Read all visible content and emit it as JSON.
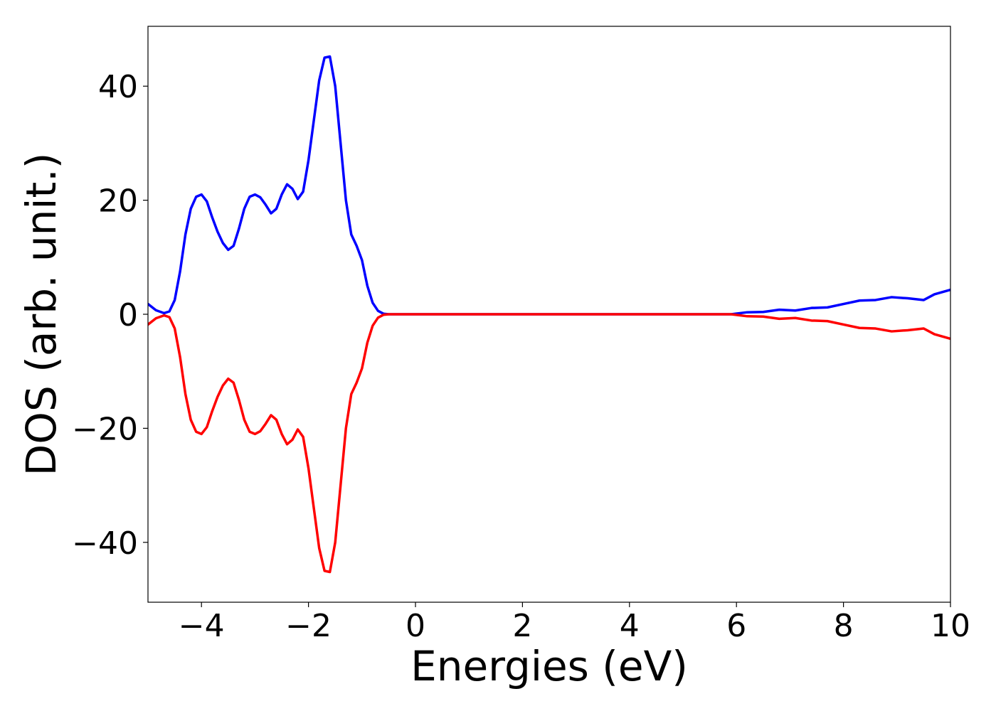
{
  "chart_data": {
    "type": "line",
    "xlabel": "Energies (eV)",
    "ylabel": "DOS (arb. unit.)",
    "xlim": [
      -5,
      10
    ],
    "ylim": [
      -50.5,
      50.5
    ],
    "xticks": [
      -4,
      -2,
      0,
      2,
      4,
      6,
      8,
      10
    ],
    "xtick_labels": [
      "−4",
      "−2",
      "0",
      "2",
      "4",
      "6",
      "8",
      "10"
    ],
    "yticks": [
      -40,
      -20,
      0,
      20,
      40
    ],
    "ytick_labels": [
      "−40",
      "−20",
      "0",
      "20",
      "40"
    ],
    "grid": false,
    "series": [
      {
        "color": "#0000ff",
        "points": [
          [
            -5.0,
            1.8
          ],
          [
            -4.85,
            0.7
          ],
          [
            -4.7,
            0.2
          ],
          [
            -4.6,
            0.5
          ],
          [
            -4.5,
            2.5
          ],
          [
            -4.4,
            7.5
          ],
          [
            -4.3,
            14.0
          ],
          [
            -4.2,
            18.5
          ],
          [
            -4.1,
            20.6
          ],
          [
            -4.0,
            21.0
          ],
          [
            -3.9,
            19.8
          ],
          [
            -3.8,
            17.0
          ],
          [
            -3.7,
            14.5
          ],
          [
            -3.6,
            12.5
          ],
          [
            -3.5,
            11.3
          ],
          [
            -3.4,
            12.0
          ],
          [
            -3.3,
            15.0
          ],
          [
            -3.2,
            18.5
          ],
          [
            -3.1,
            20.6
          ],
          [
            -3.0,
            21.0
          ],
          [
            -2.9,
            20.5
          ],
          [
            -2.8,
            19.2
          ],
          [
            -2.7,
            17.7
          ],
          [
            -2.6,
            18.5
          ],
          [
            -2.5,
            21.0
          ],
          [
            -2.4,
            22.8
          ],
          [
            -2.3,
            22.0
          ],
          [
            -2.2,
            20.2
          ],
          [
            -2.1,
            21.5
          ],
          [
            -2.0,
            27.0
          ],
          [
            -1.9,
            34.0
          ],
          [
            -1.8,
            41.0
          ],
          [
            -1.7,
            45.0
          ],
          [
            -1.6,
            45.2
          ],
          [
            -1.5,
            40.0
          ],
          [
            -1.4,
            30.0
          ],
          [
            -1.3,
            20.0
          ],
          [
            -1.2,
            14.0
          ],
          [
            -1.1,
            12.0
          ],
          [
            -1.0,
            9.5
          ],
          [
            -0.9,
            5.0
          ],
          [
            -0.8,
            2.0
          ],
          [
            -0.7,
            0.6
          ],
          [
            -0.6,
            0.1
          ],
          [
            -0.5,
            0.0
          ],
          [
            0.0,
            0.0
          ],
          [
            5.0,
            0.0
          ],
          [
            5.9,
            0.0
          ],
          [
            6.2,
            0.35
          ],
          [
            6.5,
            0.4
          ],
          [
            6.8,
            0.8
          ],
          [
            7.1,
            0.65
          ],
          [
            7.4,
            1.1
          ],
          [
            7.7,
            1.2
          ],
          [
            8.0,
            1.8
          ],
          [
            8.3,
            2.4
          ],
          [
            8.6,
            2.5
          ],
          [
            8.9,
            3.0
          ],
          [
            9.2,
            2.8
          ],
          [
            9.5,
            2.5
          ],
          [
            9.7,
            3.5
          ],
          [
            10.0,
            4.3
          ]
        ]
      },
      {
        "color": "#ff0000",
        "points": [
          [
            -5.0,
            -1.8
          ],
          [
            -4.85,
            -0.7
          ],
          [
            -4.7,
            -0.2
          ],
          [
            -4.6,
            -0.5
          ],
          [
            -4.5,
            -2.5
          ],
          [
            -4.4,
            -7.5
          ],
          [
            -4.3,
            -14.0
          ],
          [
            -4.2,
            -18.5
          ],
          [
            -4.1,
            -20.6
          ],
          [
            -4.0,
            -21.0
          ],
          [
            -3.9,
            -19.8
          ],
          [
            -3.8,
            -17.0
          ],
          [
            -3.7,
            -14.5
          ],
          [
            -3.6,
            -12.5
          ],
          [
            -3.5,
            -11.3
          ],
          [
            -3.4,
            -12.0
          ],
          [
            -3.3,
            -15.0
          ],
          [
            -3.2,
            -18.5
          ],
          [
            -3.1,
            -20.6
          ],
          [
            -3.0,
            -21.0
          ],
          [
            -2.9,
            -20.5
          ],
          [
            -2.8,
            -19.2
          ],
          [
            -2.7,
            -17.7
          ],
          [
            -2.6,
            -18.5
          ],
          [
            -2.5,
            -21.0
          ],
          [
            -2.4,
            -22.8
          ],
          [
            -2.3,
            -22.0
          ],
          [
            -2.2,
            -20.2
          ],
          [
            -2.1,
            -21.5
          ],
          [
            -2.0,
            -27.0
          ],
          [
            -1.9,
            -34.0
          ],
          [
            -1.8,
            -41.0
          ],
          [
            -1.7,
            -45.0
          ],
          [
            -1.6,
            -45.2
          ],
          [
            -1.5,
            -40.0
          ],
          [
            -1.4,
            -30.0
          ],
          [
            -1.3,
            -20.0
          ],
          [
            -1.2,
            -14.0
          ],
          [
            -1.1,
            -12.0
          ],
          [
            -1.0,
            -9.5
          ],
          [
            -0.9,
            -5.0
          ],
          [
            -0.8,
            -2.0
          ],
          [
            -0.7,
            -0.6
          ],
          [
            -0.6,
            -0.1
          ],
          [
            -0.5,
            0.0
          ],
          [
            0.0,
            0.0
          ],
          [
            5.0,
            0.0
          ],
          [
            5.9,
            0.0
          ],
          [
            6.2,
            -0.35
          ],
          [
            6.5,
            -0.4
          ],
          [
            6.8,
            -0.8
          ],
          [
            7.1,
            -0.65
          ],
          [
            7.4,
            -1.1
          ],
          [
            7.7,
            -1.2
          ],
          [
            8.0,
            -1.8
          ],
          [
            8.3,
            -2.4
          ],
          [
            8.6,
            -2.5
          ],
          [
            8.9,
            -3.0
          ],
          [
            9.2,
            -2.8
          ],
          [
            9.5,
            -2.5
          ],
          [
            9.7,
            -3.5
          ],
          [
            10.0,
            -4.3
          ]
        ]
      }
    ]
  }
}
